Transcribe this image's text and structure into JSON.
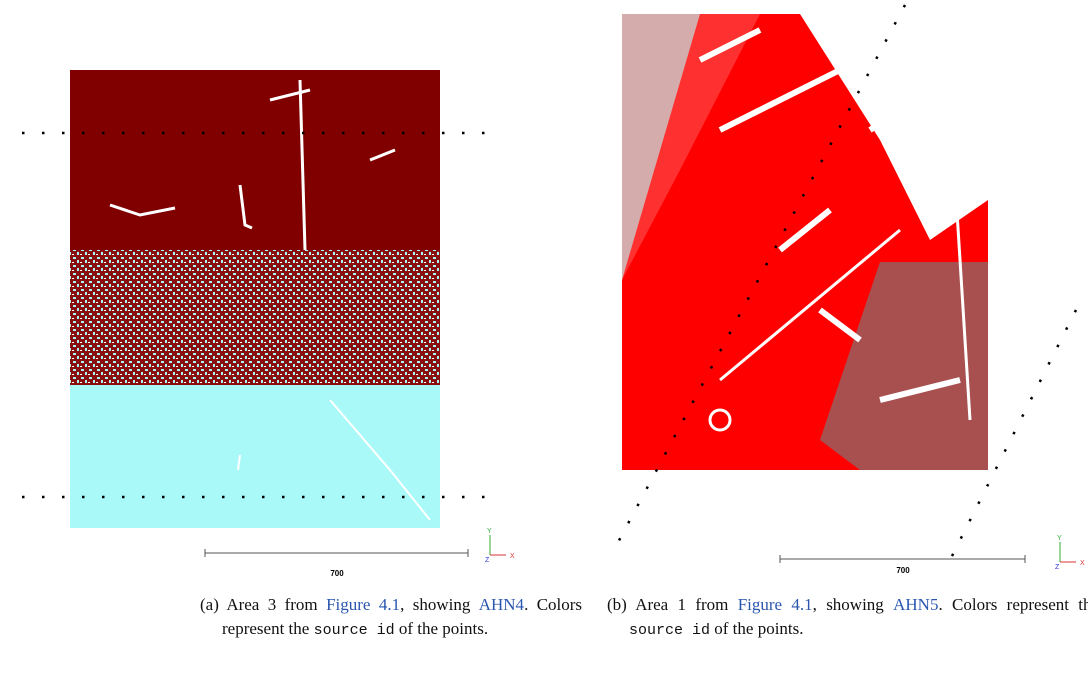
{
  "figures": [
    {
      "scale_label": "700",
      "axes": {
        "y": "Y",
        "x": "X",
        "z": "Z"
      },
      "caption": {
        "label": "(a)",
        "before": "Area 3 from",
        "ref": "Figure 4.1",
        "middle": ", showing",
        "acronym": "AHN4",
        "after": ". Colors represent the",
        "code": "source id",
        "end": "of the points."
      }
    },
    {
      "scale_label": "700",
      "axes": {
        "y": "Y",
        "x": "X",
        "z": "Z"
      },
      "caption": {
        "label": "(b)",
        "before": "Area 1 from",
        "ref": "Figure 4.1",
        "middle": ", showing",
        "acronym": "AHN5",
        "after": ". Colors represent the",
        "code": "source id",
        "end": "of the points."
      }
    }
  ]
}
